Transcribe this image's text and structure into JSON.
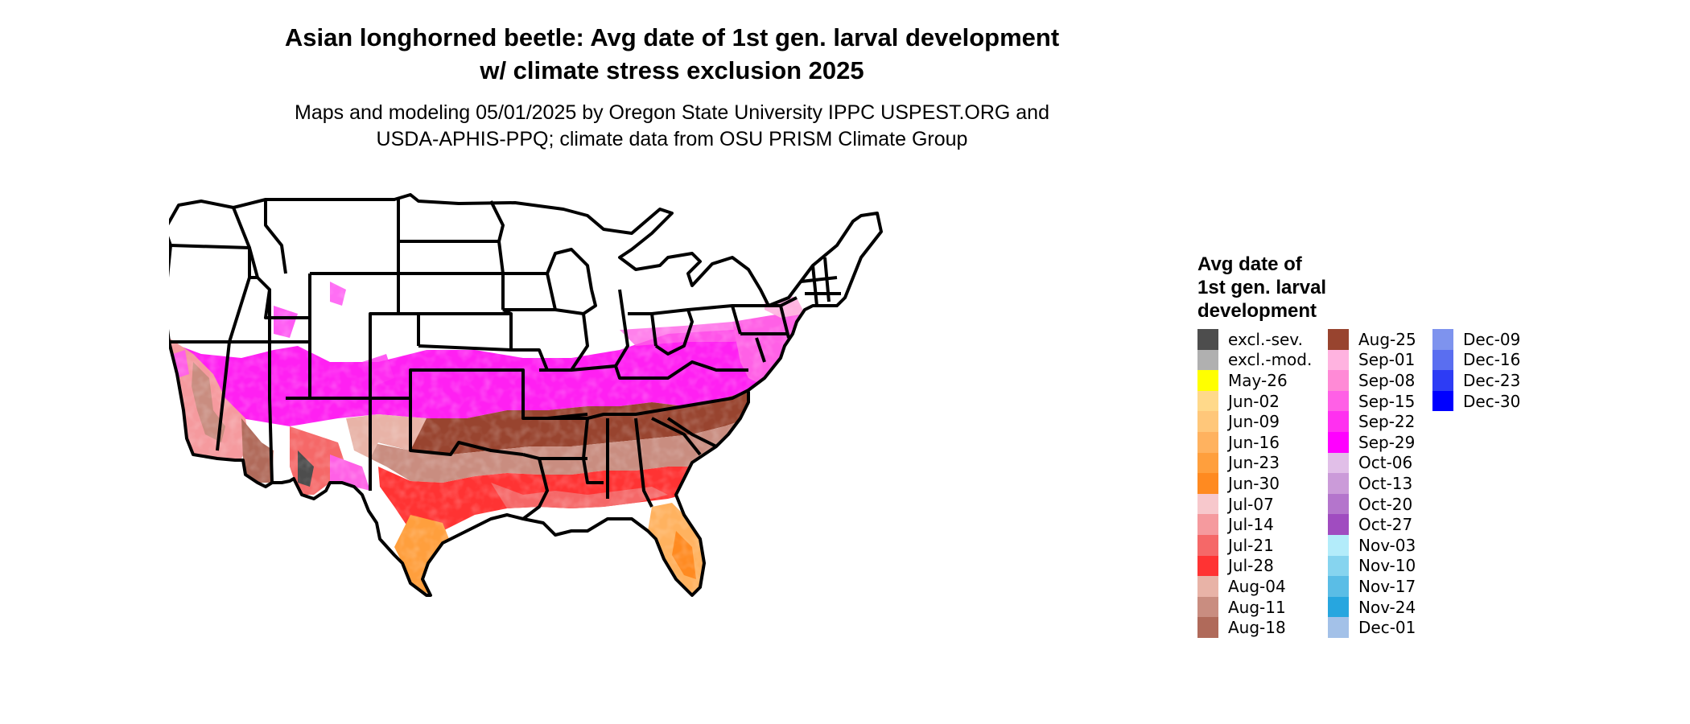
{
  "title_line1": "Asian longhorned beetle: Avg date of 1st gen. larval development",
  "title_line2": "w/ climate stress exclusion 2025",
  "subtitle_line1": "Maps and modeling 05/01/2025 by Oregon State University IPPC USPEST.ORG and",
  "subtitle_line2": "USDA-APHIS-PPQ; climate data from OSU PRISM Climate Group",
  "legend": {
    "title_line1": "Avg date of",
    "title_line2": "1st gen. larval",
    "title_line3": "development",
    "columns": [
      [
        {
          "label": "excl.-sev.",
          "color": "#4d4d4d"
        },
        {
          "label": "excl.-mod.",
          "color": "#b0b0b0"
        },
        {
          "label": "May-26",
          "color": "#ffff00"
        },
        {
          "label": "Jun-02",
          "color": "#ffd98a"
        },
        {
          "label": "Jun-09",
          "color": "#ffc77a"
        },
        {
          "label": "Jun-16",
          "color": "#ffb25f"
        },
        {
          "label": "Jun-23",
          "color": "#ff9f3d"
        },
        {
          "label": "Jun-30",
          "color": "#ff8a20"
        },
        {
          "label": "Jul-07",
          "color": "#f7c8cc"
        },
        {
          "label": "Jul-14",
          "color": "#f59a9e"
        },
        {
          "label": "Jul-21",
          "color": "#f56868"
        },
        {
          "label": "Jul-28",
          "color": "#ff3333"
        },
        {
          "label": "Aug-04",
          "color": "#e8b3a7"
        },
        {
          "label": "Aug-11",
          "color": "#c98d80"
        },
        {
          "label": "Aug-18",
          "color": "#b06a5a"
        }
      ],
      [
        {
          "label": "Aug-25",
          "color": "#98442f"
        },
        {
          "label": "Sep-01",
          "color": "#ffb3e0"
        },
        {
          "label": "Sep-08",
          "color": "#ff8ad6"
        },
        {
          "label": "Sep-15",
          "color": "#ff60e6"
        },
        {
          "label": "Sep-22",
          "color": "#ff30f0"
        },
        {
          "label": "Sep-29",
          "color": "#ff00ff"
        },
        {
          "label": "Oct-06",
          "color": "#e1bfe8"
        },
        {
          "label": "Oct-13",
          "color": "#cb9bd9"
        },
        {
          "label": "Oct-20",
          "color": "#b475cc"
        },
        {
          "label": "Oct-27",
          "color": "#a04cc0"
        },
        {
          "label": "Nov-03",
          "color": "#b3ecfa"
        },
        {
          "label": "Nov-10",
          "color": "#86d4ef"
        },
        {
          "label": "Nov-17",
          "color": "#5abde6"
        },
        {
          "label": "Nov-24",
          "color": "#27a6df"
        },
        {
          "label": "Dec-01",
          "color": "#a3c1e8"
        }
      ],
      [
        {
          "label": "Dec-09",
          "color": "#7e93ee"
        },
        {
          "label": "Dec-16",
          "color": "#5a6ef0"
        },
        {
          "label": "Dec-23",
          "color": "#2d3cf5"
        },
        {
          "label": "Dec-30",
          "color": "#0000ff"
        }
      ]
    ]
  }
}
